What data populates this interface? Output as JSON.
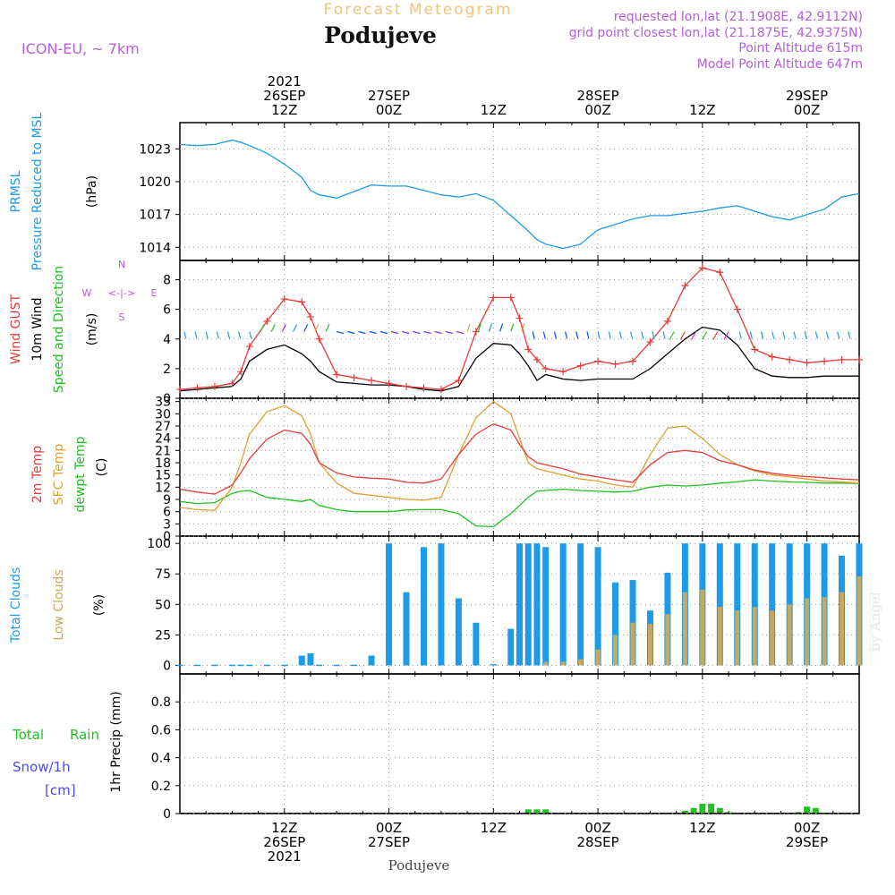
{
  "header": {
    "app_title": "Forecast Meteogram",
    "location": "Podujeve",
    "model": "ICON-EU, ~ 7km",
    "requested": "requested lon,lat (21.1908E, 42.9112N)",
    "grid_point": "grid point closest lon,lat (21.1875E, 42.9375N)",
    "point_alt": "Point Altitude 615m",
    "model_alt": "Model Point Altitude 647m",
    "footer_location": "Podujeve",
    "watermark": "by Angel"
  },
  "time_axis": {
    "top": [
      {
        "t": 12,
        "lines": [
          "2021",
          "26SEP",
          "12Z"
        ]
      },
      {
        "t": 24,
        "lines": [
          "27SEP",
          "00Z"
        ]
      },
      {
        "t": 36,
        "lines": [
          "12Z"
        ]
      },
      {
        "t": 48,
        "lines": [
          "28SEP",
          "00Z"
        ]
      },
      {
        "t": 60,
        "lines": [
          "12Z"
        ]
      },
      {
        "t": 72,
        "lines": [
          "29SEP",
          "00Z"
        ]
      }
    ],
    "bottom": [
      {
        "t": 12,
        "lines": [
          "12Z",
          "26SEP",
          "2021"
        ]
      },
      {
        "t": 24,
        "lines": [
          "00Z",
          "27SEP"
        ]
      },
      {
        "t": 36,
        "lines": [
          "12Z"
        ]
      },
      {
        "t": 48,
        "lines": [
          "00Z",
          "28SEP"
        ]
      },
      {
        "t": 60,
        "lines": [
          "12Z"
        ]
      },
      {
        "t": 72,
        "lines": [
          "00Z",
          "29SEP"
        ]
      }
    ]
  },
  "panels": {
    "pressure": {
      "labels": [
        "PRMSL",
        "Pressure Reduced to MSL"
      ],
      "unit": "(hPa)",
      "ticks": [
        1014,
        1017,
        1020,
        1023
      ]
    },
    "wind": {
      "labels": [
        "Wind GUST",
        "10m Wind",
        "Speed and Direction"
      ],
      "unit": "(m/s)",
      "ticks": [
        0,
        2,
        4,
        6,
        8
      ],
      "compass": {
        "n": "N",
        "s": "S",
        "w": "W",
        "e": "E",
        "arrow": "<-|->"
      }
    },
    "temp": {
      "labels": [
        "2m Temp",
        "SFC Temp",
        "dewpt Temp"
      ],
      "unit": "(C)",
      "ticks": [
        0,
        3,
        6,
        9,
        12,
        15,
        18,
        21,
        24,
        27,
        30,
        33
      ]
    },
    "clouds": {
      "labels": [
        "Total Clouds",
        "Low Clouds"
      ],
      "unit": "(%)",
      "ticks": [
        0,
        25,
        50,
        75,
        100
      ]
    },
    "precip": {
      "labels": [
        "Total",
        "Rain",
        "Snow/1h",
        "[cm]"
      ],
      "unit": "1hr Precip (mm)",
      "ticks": [
        "0",
        "0.2",
        "0.4",
        "0.6",
        "0.8"
      ]
    }
  },
  "colors": {
    "pressure": "#1e9be8",
    "gust": "#e83a3a",
    "wind": "#000000",
    "temp2m": "#e83a3a",
    "sfc": "#e0a030",
    "dewpt": "#1fbf1f",
    "total_clouds": "#1e9be8",
    "low_clouds": "#c8a85a",
    "rain": "#22c022",
    "snow": "#4a4ae8",
    "model": "#b45ed8",
    "title": "#f0c47a"
  },
  "chart_data": [
    {
      "type": "line",
      "title": "PRMSL",
      "ylabel": "(hPa)",
      "ylim": [
        1012.8,
        1025.4
      ],
      "x_hours_from_26SEP_00Z": [
        0,
        2,
        4,
        6,
        7,
        8,
        10,
        12,
        14,
        15,
        16,
        18,
        20,
        22,
        24,
        26,
        28,
        30,
        32,
        34,
        36,
        38,
        39,
        40,
        41,
        42,
        44,
        46,
        48,
        50,
        52,
        54,
        56,
        58,
        60,
        62,
        64,
        66,
        68,
        70,
        72,
        74,
        76,
        78
      ],
      "series": [
        {
          "name": "PRMSL",
          "values": [
            1023.4,
            1023.3,
            1023.4,
            1023.8,
            1023.6,
            1023.3,
            1022.6,
            1021.6,
            1020.4,
            1019.2,
            1018.8,
            1018.5,
            1019.1,
            1019.7,
            1019.6,
            1019.6,
            1019.2,
            1018.8,
            1018.6,
            1018.9,
            1018.3,
            1016.9,
            1016.2,
            1015.5,
            1014.7,
            1014.3,
            1013.9,
            1014.3,
            1015.6,
            1016.1,
            1016.6,
            1016.9,
            1016.9,
            1017.1,
            1017.3,
            1017.6,
            1017.8,
            1017.3,
            1016.8,
            1016.5,
            1017.0,
            1017.5,
            1018.6,
            1018.9
          ]
        }
      ]
    },
    {
      "type": "line",
      "title": "Wind",
      "ylabel": "(m/s)",
      "ylim": [
        0,
        9.3
      ],
      "x_hours_from_26SEP_00Z": [
        0,
        2,
        4,
        6,
        7,
        8,
        10,
        12,
        14,
        15,
        16,
        18,
        20,
        22,
        24,
        26,
        28,
        30,
        32,
        34,
        36,
        38,
        39,
        40,
        41,
        42,
        44,
        46,
        48,
        50,
        52,
        54,
        56,
        58,
        60,
        62,
        64,
        66,
        68,
        70,
        72,
        74,
        76,
        78
      ],
      "series": [
        {
          "name": "Wind GUST",
          "values": [
            0.6,
            0.7,
            0.8,
            1.0,
            1.8,
            3.5,
            5.2,
            6.7,
            6.5,
            5.5,
            4.0,
            1.6,
            1.4,
            1.2,
            1.0,
            0.8,
            0.7,
            0.6,
            1.2,
            4.5,
            6.8,
            6.8,
            5.4,
            3.3,
            2.6,
            2.0,
            1.8,
            2.2,
            2.5,
            2.3,
            2.5,
            3.8,
            5.2,
            7.6,
            8.8,
            8.5,
            6.0,
            3.3,
            2.8,
            2.6,
            2.4,
            2.5,
            2.6,
            2.6
          ]
        },
        {
          "name": "10m Wind",
          "values": [
            0.5,
            0.6,
            0.7,
            0.8,
            1.3,
            2.5,
            3.3,
            3.6,
            3.0,
            2.5,
            1.8,
            1.1,
            1.0,
            0.9,
            0.9,
            0.8,
            0.6,
            0.5,
            0.8,
            2.7,
            3.7,
            3.6,
            3.0,
            2.2,
            1.2,
            1.6,
            1.3,
            1.2,
            1.3,
            1.3,
            1.3,
            2.0,
            3.0,
            4.0,
            4.8,
            4.6,
            3.6,
            2.0,
            1.5,
            1.4,
            1.4,
            1.5,
            1.5,
            1.5
          ]
        }
      ]
    },
    {
      "type": "line",
      "title": "Temperature",
      "ylabel": "(C)",
      "ylim": [
        0,
        33.8
      ],
      "x_hours_from_26SEP_00Z": [
        0,
        2,
        4,
        6,
        7,
        8,
        10,
        12,
        14,
        15,
        16,
        18,
        20,
        22,
        24,
        26,
        28,
        30,
        32,
        34,
        36,
        38,
        39,
        40,
        41,
        42,
        44,
        46,
        48,
        50,
        52,
        54,
        56,
        58,
        60,
        62,
        64,
        66,
        68,
        70,
        72,
        74,
        76,
        78
      ],
      "series": [
        {
          "name": "2m Temp",
          "values": [
            11.5,
            10.8,
            10.3,
            12.5,
            15.5,
            19.0,
            23.8,
            26.0,
            25.2,
            22.5,
            18.0,
            15.5,
            14.5,
            14.2,
            14.0,
            13.2,
            13.0,
            14.0,
            20.0,
            25.0,
            27.5,
            26.0,
            22.5,
            19.5,
            18.0,
            17.5,
            16.5,
            15.2,
            14.5,
            13.8,
            13.2,
            17.5,
            20.5,
            21.0,
            20.5,
            18.5,
            17.5,
            16.2,
            15.4,
            14.9,
            14.6,
            14.3,
            14.0,
            13.8
          ]
        },
        {
          "name": "SFC Temp",
          "values": [
            7.0,
            6.5,
            6.3,
            12.0,
            18.0,
            25.0,
            30.5,
            32.0,
            29.5,
            25.0,
            18.0,
            13.0,
            10.5,
            10.0,
            9.5,
            9.0,
            8.8,
            9.5,
            20.0,
            29.0,
            33.0,
            30.0,
            24.0,
            18.0,
            16.5,
            16.0,
            15.0,
            14.0,
            13.5,
            12.5,
            12.0,
            20.0,
            26.5,
            27.0,
            24.0,
            20.0,
            17.5,
            16.0,
            15.0,
            14.5,
            14.0,
            13.5,
            13.3,
            13.0
          ]
        },
        {
          "name": "dewpt Temp",
          "values": [
            8.5,
            8.0,
            8.2,
            10.5,
            11.0,
            11.2,
            9.5,
            9.0,
            8.5,
            9.0,
            7.5,
            6.5,
            6.0,
            6.0,
            6.0,
            6.4,
            6.5,
            6.5,
            5.5,
            2.5,
            2.3,
            5.5,
            7.5,
            9.5,
            11.0,
            11.2,
            11.5,
            11.2,
            11.0,
            10.8,
            11.0,
            12.0,
            12.5,
            12.3,
            12.5,
            13.0,
            13.3,
            13.8,
            13.5,
            13.3,
            13.2,
            13.0,
            13.0,
            12.9
          ]
        }
      ]
    },
    {
      "type": "bar",
      "title": "Clouds",
      "ylabel": "(%)",
      "ylim": [
        -7,
        106
      ],
      "x_hours_from_26SEP_00Z": [
        0,
        2,
        4,
        6,
        7,
        8,
        10,
        12,
        14,
        15,
        16,
        18,
        20,
        22,
        24,
        26,
        28,
        30,
        32,
        34,
        36,
        38,
        39,
        40,
        41,
        42,
        44,
        46,
        48,
        50,
        52,
        54,
        56,
        58,
        60,
        62,
        64,
        66,
        68,
        70,
        72,
        74,
        76,
        78
      ],
      "series": [
        {
          "name": "Total Clouds",
          "values": [
            0,
            0,
            0,
            0,
            0,
            0,
            0,
            0,
            8,
            10,
            0,
            0,
            0,
            8,
            100,
            60,
            97,
            100,
            55,
            35,
            1,
            30,
            100,
            100,
            100,
            97,
            100,
            100,
            97,
            68,
            70,
            45,
            76,
            100,
            100,
            100,
            100,
            100,
            100,
            100,
            100,
            100,
            90,
            100
          ]
        },
        {
          "name": "Low Clouds",
          "values": [
            0,
            0,
            0,
            0,
            0,
            0,
            0,
            0,
            0,
            0,
            0,
            0,
            0,
            0,
            0,
            0,
            0,
            0,
            0,
            0,
            0,
            0,
            0,
            0,
            0,
            3,
            3,
            5,
            13,
            25,
            35,
            34,
            42,
            60,
            62,
            48,
            45,
            48,
            45,
            50,
            55,
            56,
            60,
            73
          ]
        }
      ]
    },
    {
      "type": "bar",
      "title": "1hr Precip",
      "ylabel": "1hr Precip (mm)",
      "ylim": [
        0,
        1.0
      ],
      "x_hours_from_26SEP_00Z": [
        40,
        41,
        42,
        58,
        59,
        60,
        61,
        62,
        63,
        71,
        72,
        73
      ],
      "series": [
        {
          "name": "Total Rain",
          "values": [
            0.03,
            0.03,
            0.03,
            0.02,
            0.04,
            0.07,
            0.07,
            0.04,
            0.01,
            0.01,
            0.05,
            0.04
          ]
        }
      ]
    }
  ]
}
